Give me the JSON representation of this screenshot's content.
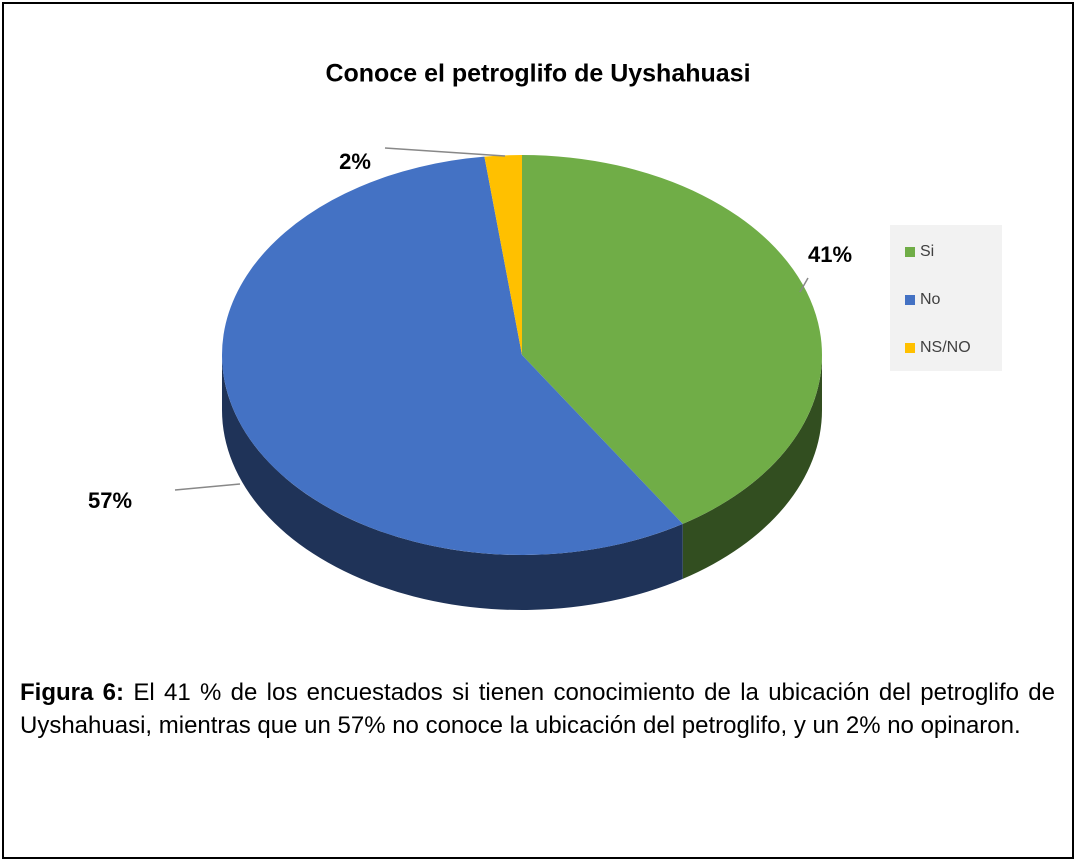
{
  "chart_data": {
    "type": "pie",
    "title": "Conoce el petroglifo de Uyshahuasi",
    "categories": [
      "Si",
      "No",
      "NS/NO"
    ],
    "values": [
      41,
      57,
      2
    ],
    "value_labels": [
      "41%",
      "57%",
      "2%"
    ],
    "colors": [
      "#70ad47",
      "#4472c4",
      "#ffc000"
    ],
    "legend": "right"
  },
  "caption": {
    "label": "Figura 6:",
    "text": "El 41 % de los encuestados si tienen conocimiento de la ubicación del petroglifo de Uyshahuasi, mientras que un 57% no conoce la ubicación del petroglifo, y un 2% no opinaron."
  }
}
